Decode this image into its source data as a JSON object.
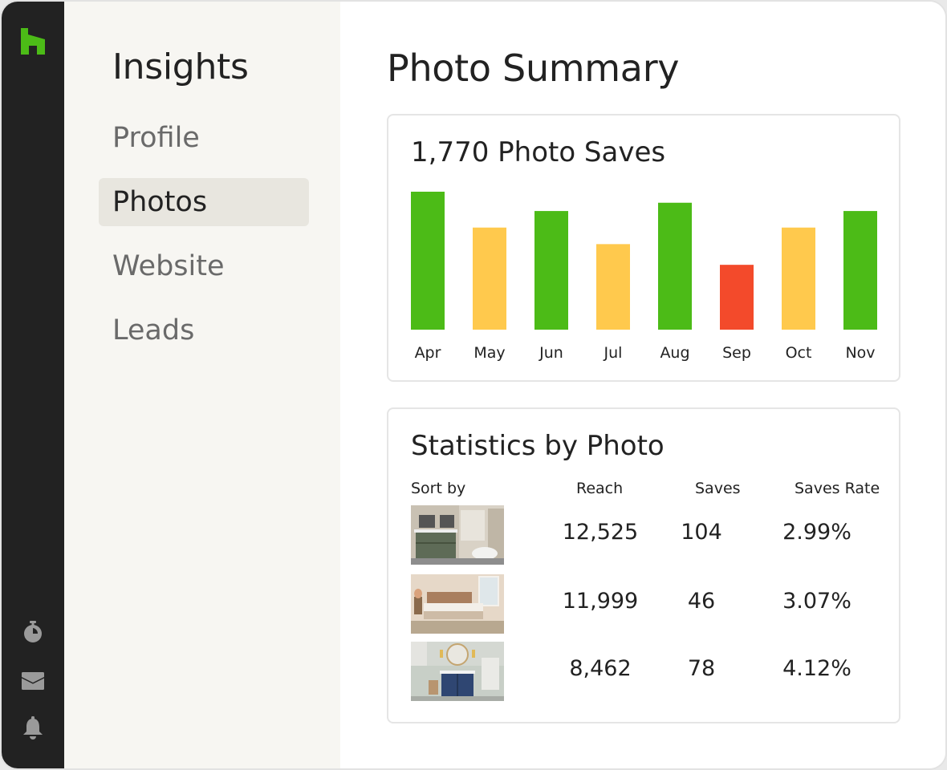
{
  "sidebar": {
    "logo": "houzz-logo",
    "icons": [
      "stopwatch-icon",
      "mail-icon",
      "bell-icon"
    ]
  },
  "subnav": {
    "title": "Insights",
    "items": [
      {
        "label": "Profile",
        "active": false
      },
      {
        "label": "Photos",
        "active": true
      },
      {
        "label": "Website",
        "active": false
      },
      {
        "label": "Leads",
        "active": false
      }
    ]
  },
  "main": {
    "title": "Photo Summary",
    "saves_card": {
      "title": "1,770 Photo Saves"
    },
    "stats_card": {
      "title": "Statistics by Photo",
      "columns": [
        "Sort by",
        "Reach",
        "Saves",
        "Saves Rate"
      ],
      "rows": [
        {
          "thumbnail": "bathroom-green-vanity-photo",
          "reach": "12,525",
          "saves": "104",
          "rate": "2.99%"
        },
        {
          "thumbnail": "bedroom-photo",
          "reach": "11,999",
          "saves": "46",
          "rate": "3.07%"
        },
        {
          "thumbnail": "bathroom-navy-vanity-photo",
          "reach": "8,462",
          "saves": "78",
          "rate": "4.12%"
        }
      ]
    }
  },
  "colors": {
    "green": "#4cbb17",
    "yellow": "#ffc94d",
    "red": "#f34a2b"
  },
  "chart_data": {
    "type": "bar",
    "categories": [
      "Apr",
      "May",
      "Jun",
      "Jul",
      "Aug",
      "Sep",
      "Oct",
      "Nov"
    ],
    "values": [
      100,
      74,
      86,
      62,
      92,
      47,
      74,
      86
    ],
    "bar_colors": [
      "green",
      "yellow",
      "green",
      "yellow",
      "green",
      "red",
      "yellow",
      "green"
    ],
    "title": "1,770 Photo Saves",
    "xlabel": "",
    "ylabel": "",
    "ylim": [
      0,
      100
    ],
    "grid": false,
    "legend": "none"
  }
}
